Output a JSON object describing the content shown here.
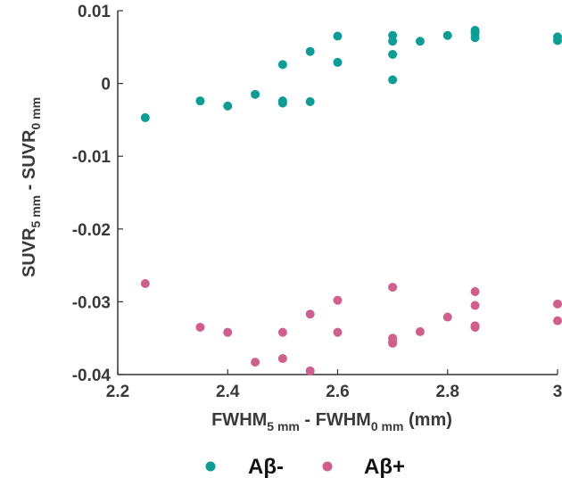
{
  "chart_data": {
    "type": "scatter",
    "xlabel": {
      "main1": "FWHM",
      "sub1": "5 mm",
      "main2": " - FWHM",
      "sub2": "0 mm",
      "tail": " (mm)"
    },
    "ylabel": {
      "main1": "SUVR",
      "sub1": "5 mm",
      "main2": " - SUVR",
      "sub2": "0 mm"
    },
    "xlim": [
      2.2,
      3.0
    ],
    "ylim": [
      -0.04,
      0.01
    ],
    "x_ticks": [
      2.2,
      2.4,
      2.6,
      2.8,
      3.0
    ],
    "x_tick_labels": [
      "2.2",
      "2.4",
      "2.6",
      "2.8",
      "3"
    ],
    "y_ticks": [
      0.01,
      0.0,
      -0.01,
      -0.02,
      -0.03,
      -0.04
    ],
    "y_tick_labels": [
      "0.01",
      "0",
      "-0.01",
      "-0.02",
      "-0.03",
      "-0.04"
    ],
    "grid": false,
    "legend_position": "bottom-center",
    "series": [
      {
        "name": "Aβ-",
        "color": "#0e9c94",
        "points": [
          [
            2.25,
            -0.0047
          ],
          [
            2.35,
            -0.0024
          ],
          [
            2.4,
            -0.0031
          ],
          [
            2.45,
            -0.0015
          ],
          [
            2.5,
            0.0026
          ],
          [
            2.5,
            -0.0024
          ],
          [
            2.5,
            -0.0027
          ],
          [
            2.55,
            0.0044
          ],
          [
            2.55,
            -0.0025
          ],
          [
            2.6,
            0.0065
          ],
          [
            2.6,
            0.0029
          ],
          [
            2.7,
            0.0066
          ],
          [
            2.7,
            0.0058
          ],
          [
            2.7,
            0.004
          ],
          [
            2.7,
            0.0005
          ],
          [
            2.75,
            0.0058
          ],
          [
            2.8,
            0.0066
          ],
          [
            2.85,
            0.0073
          ],
          [
            2.85,
            0.0069
          ],
          [
            2.85,
            0.0063
          ],
          [
            3.0,
            0.0064
          ],
          [
            3.0,
            0.0059
          ]
        ]
      },
      {
        "name": "Aβ+",
        "color": "#cf5f8c",
        "points": [
          [
            2.25,
            -0.0275
          ],
          [
            2.35,
            -0.0335
          ],
          [
            2.4,
            -0.0342
          ],
          [
            2.45,
            -0.0383
          ],
          [
            2.5,
            -0.0342
          ],
          [
            2.5,
            -0.0378
          ],
          [
            2.55,
            -0.0317
          ],
          [
            2.55,
            -0.0395
          ],
          [
            2.6,
            -0.0298
          ],
          [
            2.6,
            -0.0342
          ],
          [
            2.7,
            -0.028
          ],
          [
            2.7,
            -0.035
          ],
          [
            2.7,
            -0.0355
          ],
          [
            2.7,
            -0.0357
          ],
          [
            2.75,
            -0.0341
          ],
          [
            2.8,
            -0.0321
          ],
          [
            2.85,
            -0.0286
          ],
          [
            2.85,
            -0.0305
          ],
          [
            2.85,
            -0.0333
          ],
          [
            2.85,
            -0.0335
          ],
          [
            3.0,
            -0.0303
          ],
          [
            3.0,
            -0.0326
          ]
        ]
      }
    ]
  }
}
